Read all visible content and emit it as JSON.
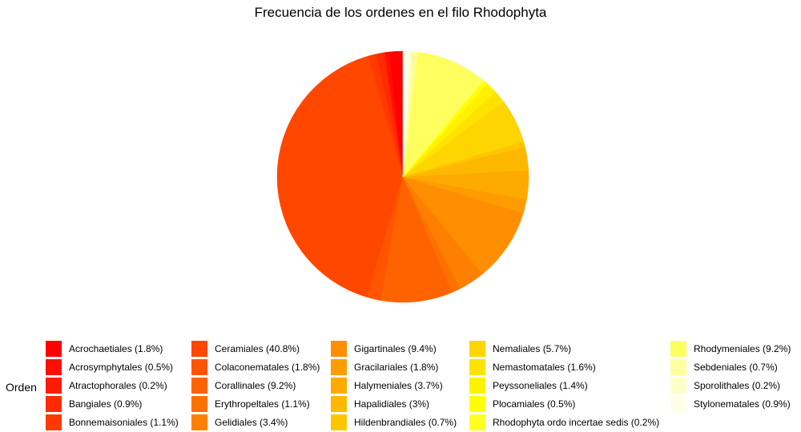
{
  "chart_data": {
    "type": "pie",
    "title": "Frecuencia de los ordenes en el filo Rhodophyta",
    "legend_title": "Orden",
    "legend_placement": "bottom",
    "start_angle_deg": 0,
    "direction": "counterclockwise",
    "slices": [
      {
        "label": "Acrochaetiales (1.8%)",
        "value": 1.8,
        "color": "#FF0000"
      },
      {
        "label": "Acrosymphytales (0.5%)",
        "value": 0.5,
        "color": "#FF0E00"
      },
      {
        "label": "Atractophorales (0.2%)",
        "value": 0.2,
        "color": "#FF1C00"
      },
      {
        "label": "Bangiales (0.9%)",
        "value": 0.9,
        "color": "#FF2B00"
      },
      {
        "label": "Bonnemaisoniales (1.1%)",
        "value": 1.1,
        "color": "#FF3900"
      },
      {
        "label": "Ceramiales (40.8%)",
        "value": 40.8,
        "color": "#FF4700"
      },
      {
        "label": "Colaconematales (1.8%)",
        "value": 1.8,
        "color": "#FF5500"
      },
      {
        "label": "Corallinales (9.2%)",
        "value": 9.2,
        "color": "#FF6300"
      },
      {
        "label": "Erythropeltales (1.1%)",
        "value": 1.1,
        "color": "#FF7100"
      },
      {
        "label": "Gelidiales (3.4%)",
        "value": 3.4,
        "color": "#FF8000"
      },
      {
        "label": "Gigartinales (9.4%)",
        "value": 9.4,
        "color": "#FF8E00"
      },
      {
        "label": "Gracilariales (1.8%)",
        "value": 1.8,
        "color": "#FF9C00"
      },
      {
        "label": "Halymeniales (3.7%)",
        "value": 3.7,
        "color": "#FFAA00"
      },
      {
        "label": "Hapalidiales (3%)",
        "value": 3.0,
        "color": "#FFB800"
      },
      {
        "label": "Hildenbrandiales (0.7%)",
        "value": 0.7,
        "color": "#FFC600"
      },
      {
        "label": "Nemaliales (5.7%)",
        "value": 5.7,
        "color": "#FFD500"
      },
      {
        "label": "Nemastomatales (1.6%)",
        "value": 1.6,
        "color": "#FFE300"
      },
      {
        "label": "Peyssoneliales (1.4%)",
        "value": 1.4,
        "color": "#FFF100"
      },
      {
        "label": "Plocamiales (0.5%)",
        "value": 0.5,
        "color": "#FFFF00"
      },
      {
        "label": "Rhodophyta ordo incertae sedis (0.2%)",
        "value": 0.2,
        "color": "#FFFF24"
      },
      {
        "label": "Rhodymeniales (9.2%)",
        "value": 9.2,
        "color": "#FFFF60"
      },
      {
        "label": "Sebdeniales (0.7%)",
        "value": 0.7,
        "color": "#FFFF9F"
      },
      {
        "label": "Sporolithales (0.2%)",
        "value": 0.2,
        "color": "#FFFFC8"
      },
      {
        "label": "Stylonematales (0.9%)",
        "value": 0.9,
        "color": "#FFFFE8"
      }
    ]
  }
}
